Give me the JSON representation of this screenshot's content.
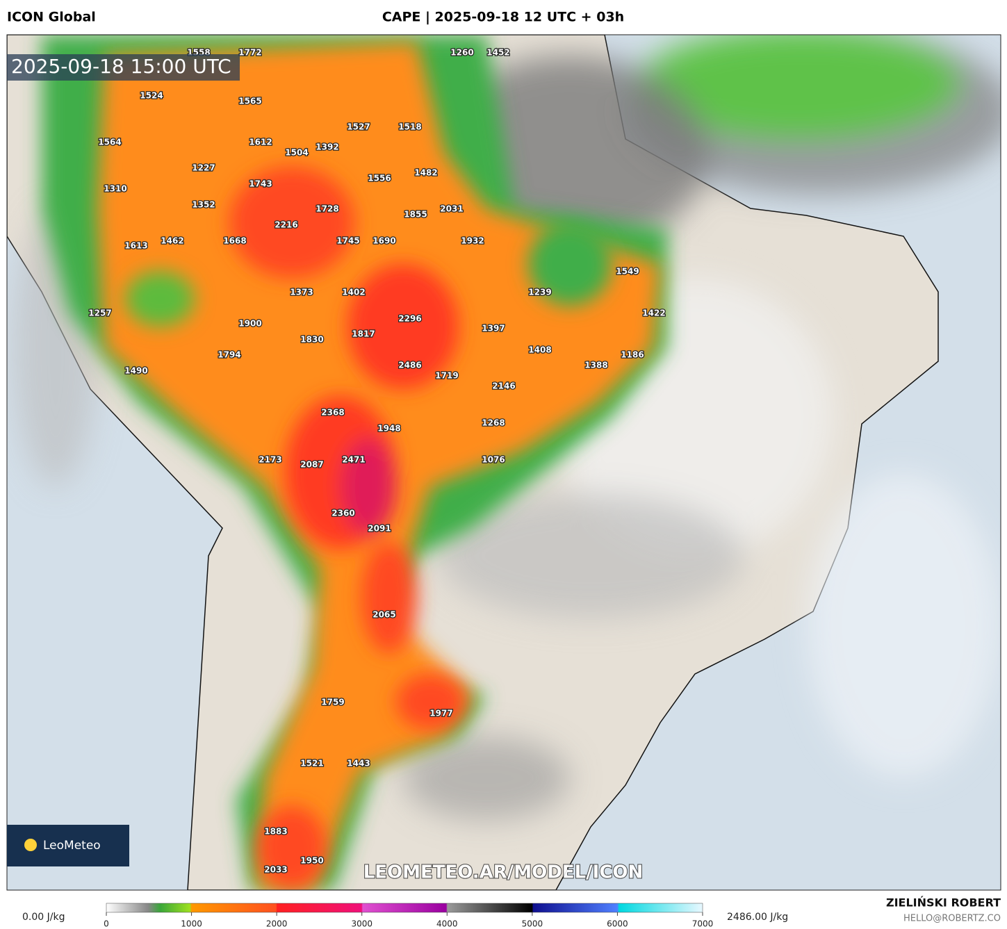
{
  "header": {
    "model": "ICON Global",
    "title": "CAPE | 2025-09-18 12 UTC + 03h"
  },
  "timestamp": "2025-09-18 15:00 UTC",
  "map_labels": [
    1558,
    1772,
    1260,
    1452,
    1524,
    1565,
    1527,
    1518,
    1564,
    1612,
    1504,
    1392,
    1227,
    1482,
    1556,
    1310,
    1743,
    1352,
    1728,
    1855,
    2031,
    2216,
    1613,
    1462,
    1668,
    1745,
    1690,
    1932,
    1549,
    1373,
    1402,
    1239,
    1257,
    1422,
    2296,
    1900,
    1397,
    1830,
    1817,
    1408,
    1794,
    1186,
    1388,
    2486,
    1490,
    1719,
    2146,
    2368,
    1948,
    1268,
    2173,
    2087,
    2471,
    1076,
    2360,
    2091,
    2065,
    1759,
    1977,
    1521,
    1443,
    1883,
    1950,
    2033
  ],
  "logo": "LeoMeteo",
  "watermark": "LEOMETEO.AR/MODEL/ICON",
  "colorbar": {
    "ticks": [
      0,
      1000,
      2000,
      3000,
      4000,
      5000,
      6000,
      7000
    ],
    "min_label": "0.00 J/kg",
    "max_label": "2486.00 J/kg"
  },
  "credits": {
    "name": "ZIELIŃSKI ROBERT",
    "email": "HELLO@ROBERTZ.CO"
  }
}
